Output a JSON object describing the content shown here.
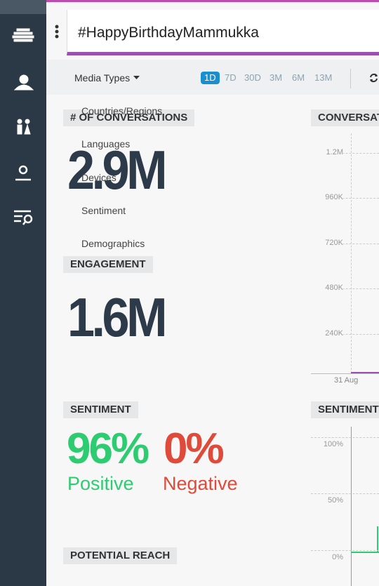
{
  "search": {
    "query": "#HappyBirthdayMammukka"
  },
  "toolbar": {
    "media_types": "Media Types",
    "ranges": [
      "1D",
      "7D",
      "30D",
      "3M",
      "6M",
      "13M"
    ],
    "selected": "1D"
  },
  "dropdown": {
    "items": [
      "Countries/Regions",
      "Languages",
      "Devices",
      "Sentiment",
      "Demographics"
    ]
  },
  "panels": {
    "conversations": {
      "label": "# OF CONVERSATIONS",
      "value": "2.9M"
    },
    "engagement": {
      "label": "ENGAGEMENT",
      "value": "1.6M"
    },
    "sentiment": {
      "label": "SENTIMENT",
      "positive_value": "96%",
      "positive_label": "Positive",
      "negative_value": "0%",
      "negative_label": "Negative"
    },
    "reach": {
      "label": "POTENTIAL REACH"
    }
  },
  "conversations_chart": {
    "title": "CONVERSATIONS",
    "yticks": [
      "1.2M",
      "960K",
      "720K",
      "480K",
      "240K"
    ],
    "xticks": [
      "31 Aug"
    ]
  },
  "sentiment_chart": {
    "title": "SENTIMENT",
    "yticks": [
      "100%",
      "50%",
      "0%"
    ]
  }
}
